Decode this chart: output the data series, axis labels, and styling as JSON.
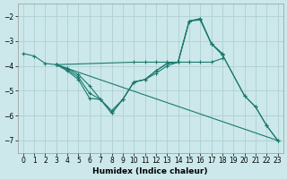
{
  "background_color": "#cce8ea",
  "grid_color": "#aed0d4",
  "line_color": "#1a7a6e",
  "xlabel": "Humidex (Indice chaleur)",
  "xlim": [
    -0.5,
    23.5
  ],
  "ylim": [
    -7.5,
    -1.5
  ],
  "xticks": [
    0,
    1,
    2,
    3,
    4,
    5,
    6,
    7,
    8,
    9,
    10,
    11,
    12,
    13,
    14,
    15,
    16,
    17,
    18,
    19,
    20,
    21,
    22,
    23
  ],
  "yticks": [
    -2,
    -3,
    -4,
    -5,
    -6,
    -7
  ],
  "series": [
    {
      "x": [
        0,
        1,
        2,
        3,
        10,
        11,
        12,
        13,
        14,
        15,
        16,
        17,
        18
      ],
      "y": [
        -3.5,
        -3.6,
        -3.9,
        -3.95,
        -3.85,
        -3.85,
        -3.85,
        -3.85,
        -3.85,
        -3.85,
        -3.85,
        -3.85,
        -3.7
      ]
    },
    {
      "x": [
        3,
        4,
        5,
        6,
        7,
        8,
        9,
        10,
        11,
        12,
        13,
        14,
        15,
        16,
        17,
        18
      ],
      "y": [
        -3.95,
        -4.1,
        -4.35,
        -4.8,
        -5.35,
        -5.8,
        -5.35,
        -4.65,
        -4.55,
        -4.2,
        -3.9,
        -3.85,
        -2.2,
        -2.15,
        -3.1,
        -3.5
      ]
    },
    {
      "x": [
        3,
        4,
        5,
        6,
        7,
        8,
        9,
        10,
        11,
        12,
        13,
        14,
        15,
        16,
        17,
        18,
        20,
        21,
        22,
        23
      ],
      "y": [
        -3.95,
        -4.15,
        -4.45,
        -5.1,
        -5.35,
        -5.9,
        -5.35,
        -4.65,
        -4.55,
        -4.2,
        -3.9,
        -3.85,
        -2.2,
        -2.1,
        -3.1,
        -3.55,
        -5.2,
        -5.65,
        -6.4,
        -7.0
      ]
    },
    {
      "x": [
        3,
        4,
        5,
        6,
        7,
        8,
        9,
        10,
        11,
        12,
        13,
        14,
        15,
        16,
        17,
        18,
        20,
        21,
        22,
        23
      ],
      "y": [
        -3.95,
        -4.2,
        -4.55,
        -5.3,
        -5.35,
        -5.9,
        -5.35,
        -4.65,
        -4.55,
        -4.3,
        -4.0,
        -3.85,
        -2.2,
        -2.1,
        -3.1,
        -3.55,
        -5.2,
        -5.65,
        -6.4,
        -7.0
      ]
    },
    {
      "x": [
        3,
        23
      ],
      "y": [
        -3.95,
        -7.0
      ]
    }
  ]
}
